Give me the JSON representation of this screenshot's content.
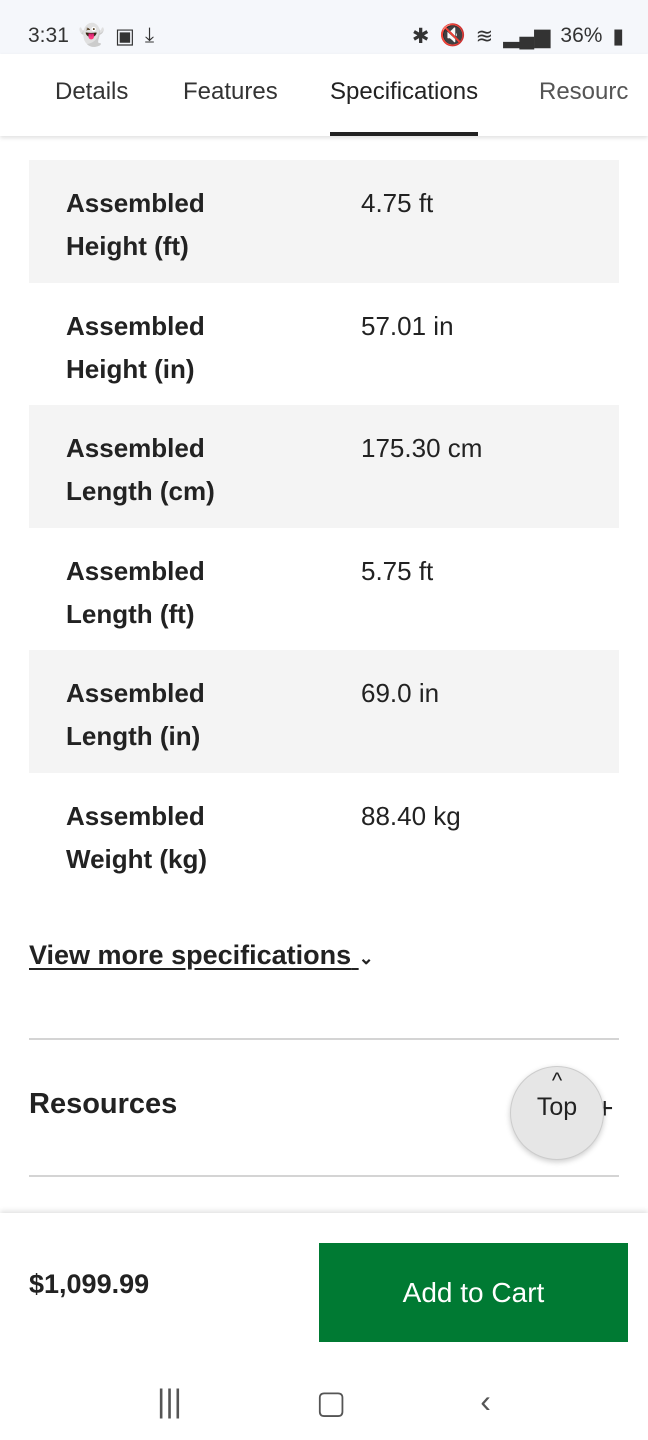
{
  "status": {
    "time": "3:31",
    "battery": "36%"
  },
  "tabs": [
    {
      "label": "Details"
    },
    {
      "label": "Features"
    },
    {
      "label": "Specifications",
      "active": true
    },
    {
      "label": "Resourc"
    }
  ],
  "specs": [
    {
      "label": "Assembled Height (ft)",
      "value": "4.75 ft"
    },
    {
      "label": "Assembled Height (in)",
      "value": "57.01 in"
    },
    {
      "label": "Assembled Length (cm)",
      "value": "175.30 cm"
    },
    {
      "label": "Assembled Length (ft)",
      "value": "5.75 ft"
    },
    {
      "label": "Assembled Length (in)",
      "value": "69.0 in"
    },
    {
      "label": "Assembled Weight (kg)",
      "value": "88.40 kg"
    }
  ],
  "more_link": "View more specifications",
  "resources": {
    "title": "Resources",
    "toggle": "+"
  },
  "top_button": "Top",
  "footer": {
    "price": "$1,099.99",
    "cart_label": "Add to Cart",
    "accent": "#007a33"
  }
}
